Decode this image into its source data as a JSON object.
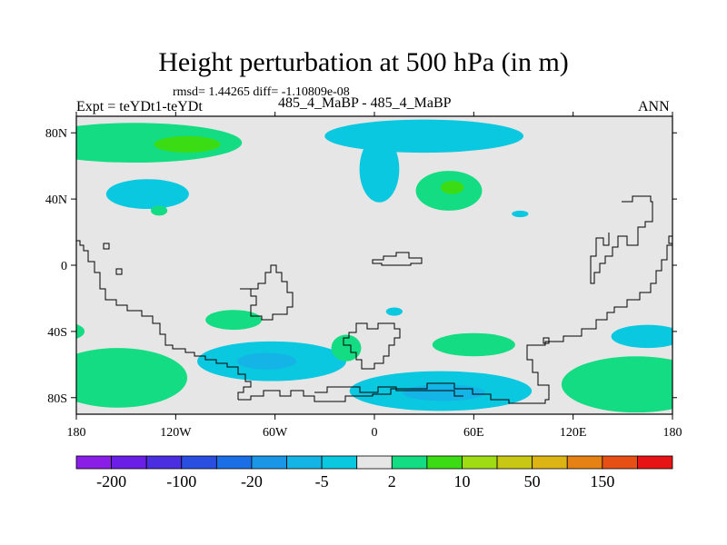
{
  "header": {
    "title": "Height perturbation at 500 hPa (in m)",
    "stats": "rmsd= 1.44265 diff= -1.10809e-08",
    "expt": "Expt = teYDt1-teYDt",
    "center": "485_4_MaBP - 485_4_MaBP",
    "season": "ANN"
  },
  "chart_data": {
    "type": "heatmap",
    "title": "Height perturbation at 500 hPa (in m)",
    "xlabel": "",
    "ylabel": "",
    "xlim": [
      -180,
      180
    ],
    "ylim": [
      -90,
      90
    ],
    "x_ticks": [
      {
        "value": -180,
        "label": "180"
      },
      {
        "value": -120,
        "label": "120W"
      },
      {
        "value": -60,
        "label": "60W"
      },
      {
        "value": 0,
        "label": "0"
      },
      {
        "value": 60,
        "label": "60E"
      },
      {
        "value": 120,
        "label": "120E"
      },
      {
        "value": 180,
        "label": "180"
      }
    ],
    "y_ticks": [
      {
        "value": 80,
        "label": "80N"
      },
      {
        "value": 40,
        "label": "40N"
      },
      {
        "value": 0,
        "label": "0"
      },
      {
        "value": -40,
        "label": "40S"
      },
      {
        "value": -80,
        "label": "80S"
      }
    ],
    "background_color": "#e6e6e6",
    "colorbar": {
      "colors": [
        "#8b1ee6",
        "#6a1ee6",
        "#4a2ee0",
        "#2a4ee0",
        "#1a6ee6",
        "#1a96e6",
        "#14b4e6",
        "#0ac8e0",
        "#e6e6e6",
        "#14dc82",
        "#3cdc14",
        "#a0dc14",
        "#c8c814",
        "#dcb414",
        "#e68214",
        "#e65014",
        "#e61414"
      ],
      "labels": [
        {
          "after_box": 1,
          "text": "-200"
        },
        {
          "after_box": 3,
          "text": "-100"
        },
        {
          "after_box": 5,
          "text": "-20"
        },
        {
          "after_box": 7,
          "text": "-5"
        },
        {
          "after_box": 9,
          "text": "2"
        },
        {
          "after_box": 11,
          "text": "10"
        },
        {
          "after_box": 13,
          "text": "50"
        },
        {
          "after_box": 15,
          "text": "150"
        }
      ]
    },
    "features": [
      {
        "name": "arctic-positive-band",
        "lon": -145,
        "lat": 74,
        "rlon": 65,
        "rlat": 12,
        "color": "#14dc82"
      },
      {
        "name": "arctic-positive-core",
        "lon": -113,
        "lat": 73,
        "rlon": 20,
        "rlat": 5,
        "color": "#3cdc14"
      },
      {
        "name": "arctic-negative-band",
        "lon": 30,
        "lat": 78,
        "rlon": 60,
        "rlat": 10,
        "color": "#0ac8e0"
      },
      {
        "name": "asia-negative-tail",
        "lon": 3,
        "lat": 58,
        "rlon": 12,
        "rlat": 20,
        "color": "#0ac8e0"
      },
      {
        "name": "atlantic-negative",
        "lon": -137,
        "lat": 43,
        "rlon": 25,
        "rlat": 9,
        "color": "#0ac8e0"
      },
      {
        "name": "small-positive-1",
        "lon": -130,
        "lat": 33,
        "rlon": 5,
        "rlat": 3,
        "color": "#14dc82"
      },
      {
        "name": "europe-positive",
        "lon": 45,
        "lat": 45,
        "rlon": 20,
        "rlat": 12,
        "color": "#14dc82"
      },
      {
        "name": "europe-positive-core",
        "lon": 47,
        "lat": 47,
        "rlon": 7,
        "rlat": 4,
        "color": "#3cdc14"
      },
      {
        "name": "small-negative-1",
        "lon": 88,
        "lat": 31,
        "rlon": 5,
        "rlat": 2,
        "color": "#0ac8e0"
      },
      {
        "name": "small-negative-2",
        "lon": 12,
        "lat": -28,
        "rlon": 5,
        "rlat": 2.5,
        "color": "#0ac8e0"
      },
      {
        "name": "pacific-positive",
        "lon": -85,
        "lat": -33,
        "rlon": 17,
        "rlat": 6,
        "color": "#14dc82"
      },
      {
        "name": "east-pacific-positive",
        "lon": -185,
        "lat": -40,
        "rlon": 10,
        "rlat": 5,
        "color": "#14dc82"
      },
      {
        "name": "south-pacific-negative",
        "lon": -62,
        "lat": -58,
        "rlon": 45,
        "rlat": 12,
        "color": "#0ac8e0"
      },
      {
        "name": "south-pacific-negative-core",
        "lon": -65,
        "lat": -58,
        "rlon": 18,
        "rlat": 5,
        "color": "#14b4e6"
      },
      {
        "name": "south-atlantic-positive-small",
        "lon": -17,
        "lat": -50,
        "rlon": 9,
        "rlat": 8,
        "color": "#14dc82"
      },
      {
        "name": "southern-ocean-positive",
        "lon": 60,
        "lat": -48,
        "rlon": 25,
        "rlat": 7,
        "color": "#14dc82"
      },
      {
        "name": "indian-ocean-negative",
        "lon": 165,
        "lat": -43,
        "rlon": 22,
        "rlat": 7,
        "color": "#0ac8e0"
      },
      {
        "name": "antarctic-positive-west",
        "lon": -155,
        "lat": -68,
        "rlon": 42,
        "rlat": 18,
        "color": "#14dc82"
      },
      {
        "name": "antarctic-positive-east",
        "lon": 158,
        "lat": -72,
        "rlon": 45,
        "rlat": 17,
        "color": "#14dc82"
      },
      {
        "name": "antarctic-negative",
        "lon": 40,
        "lat": -76,
        "rlon": 55,
        "rlat": 12,
        "color": "#0ac8e0"
      },
      {
        "name": "antarctic-negative-core",
        "lon": 42,
        "lat": -77,
        "rlon": 25,
        "rlat": 5,
        "color": "#14b4e6"
      }
    ]
  }
}
